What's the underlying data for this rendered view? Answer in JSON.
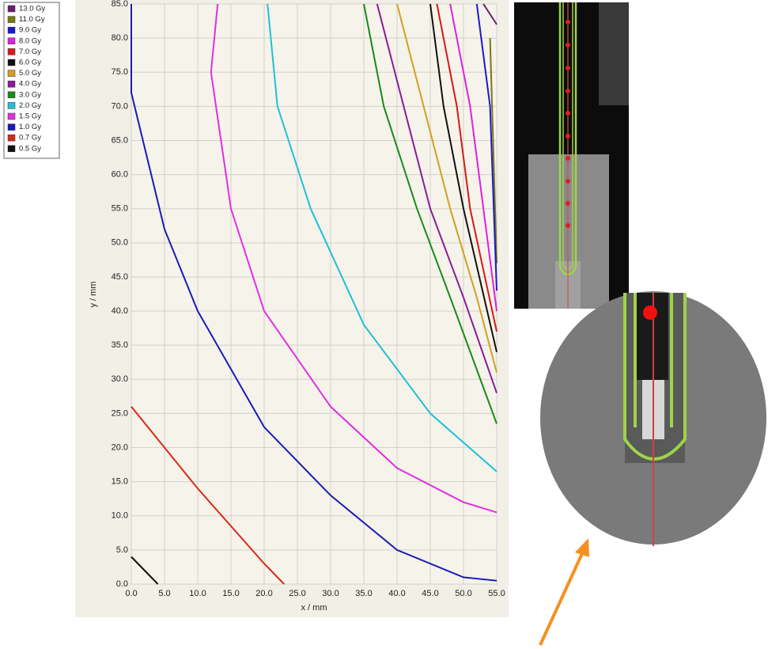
{
  "chart_data": {
    "type": "line",
    "xlabel": "x / mm",
    "ylabel": "y / mm",
    "xlim": [
      0,
      55
    ],
    "ylim": [
      0,
      85
    ],
    "grid": true,
    "xticks": [
      {
        "value": 0,
        "label": "0.0"
      },
      {
        "value": 5,
        "label": "5.0"
      },
      {
        "value": 10,
        "label": "10.0"
      },
      {
        "value": 15,
        "label": "15.0"
      },
      {
        "value": 20,
        "label": "20.0"
      },
      {
        "value": 25,
        "label": "25.0"
      },
      {
        "value": 30,
        "label": "30.0"
      },
      {
        "value": 35,
        "label": "35.0"
      },
      {
        "value": 40,
        "label": "40.0"
      },
      {
        "value": 45,
        "label": "45.0"
      },
      {
        "value": 50,
        "label": "50.0"
      },
      {
        "value": 55,
        "label": "55.0"
      }
    ],
    "yticks": [
      {
        "value": 0,
        "label": "0.0"
      },
      {
        "value": 5,
        "label": "5.0"
      },
      {
        "value": 10,
        "label": "10.0"
      },
      {
        "value": 15,
        "label": "15.0"
      },
      {
        "value": 20,
        "label": "20.0"
      },
      {
        "value": 25,
        "label": "25.0"
      },
      {
        "value": 30,
        "label": "30.0"
      },
      {
        "value": 35,
        "label": "35.0"
      },
      {
        "value": 40,
        "label": "40.0"
      },
      {
        "value": 45,
        "label": "45.0"
      },
      {
        "value": 50,
        "label": "50.0"
      },
      {
        "value": 55,
        "label": "55.0"
      },
      {
        "value": 60,
        "label": "60.0"
      },
      {
        "value": 65,
        "label": "65.0"
      },
      {
        "value": 70,
        "label": "70.0"
      },
      {
        "value": 75,
        "label": "75.0"
      },
      {
        "value": 80,
        "label": "80.0"
      },
      {
        "value": 85,
        "label": "85.0"
      }
    ],
    "series": [
      {
        "name": "13.0 Gy",
        "color": "#6a1f6e",
        "x": [
          53,
          55
        ],
        "values": [
          85,
          82
        ]
      },
      {
        "name": "11.0 Gy",
        "color": "#7a7a10",
        "x": [
          54,
          55
        ],
        "values": [
          80,
          47
        ]
      },
      {
        "name": "9.0 Gy",
        "color": "#1a1acc",
        "x": [
          52,
          54,
          55
        ],
        "values": [
          85,
          70,
          43
        ]
      },
      {
        "name": "8.0 Gy",
        "color": "#e020e0",
        "x": [
          48,
          51,
          53,
          55
        ],
        "values": [
          85,
          70,
          55,
          40
        ]
      },
      {
        "name": "7.0 Gy",
        "color": "#d41a1a",
        "x": [
          46,
          49,
          51,
          55
        ],
        "values": [
          85,
          70,
          55,
          37
        ]
      },
      {
        "name": "6.0 Gy",
        "color": "#111111",
        "x": [
          45,
          47,
          50,
          55
        ],
        "values": [
          85,
          70,
          55,
          34
        ]
      },
      {
        "name": "5.0 Gy",
        "color": "#d4a020",
        "x": [
          40,
          44,
          48,
          52,
          55
        ],
        "values": [
          85,
          70,
          55,
          42,
          31
        ]
      },
      {
        "name": "4.0 Gy",
        "color": "#8a1a9a",
        "x": [
          37,
          41,
          45,
          50,
          55
        ],
        "values": [
          85,
          70,
          55,
          42,
          28
        ]
      },
      {
        "name": "3.0 Gy",
        "color": "#1a8a1a",
        "x": [
          35,
          38,
          43,
          48,
          55
        ],
        "values": [
          85,
          70,
          55,
          42,
          23.5
        ]
      },
      {
        "name": "2.0 Gy",
        "color": "#20c0d8",
        "x": [
          20.5,
          22,
          27,
          35,
          45,
          55
        ],
        "values": [
          85,
          70,
          55,
          38,
          25,
          16.5
        ]
      },
      {
        "name": "1.5 Gy",
        "color": "#e030e0",
        "x": [
          13,
          12,
          15,
          20,
          30,
          40,
          50,
          55
        ],
        "values": [
          85,
          75,
          55,
          40,
          26,
          17,
          12,
          10.5
        ]
      },
      {
        "name": "1.0 Gy",
        "color": "#1a1ab8",
        "x": [
          0,
          0,
          5,
          10,
          20,
          30,
          40,
          50,
          55
        ],
        "values": [
          85,
          72,
          52,
          40,
          23,
          13,
          5,
          1,
          0.5
        ]
      },
      {
        "name": "0.7 Gy",
        "color": "#d42a1a",
        "x": [
          0,
          10,
          20,
          23
        ],
        "values": [
          26,
          14,
          3,
          0
        ]
      },
      {
        "name": "0.5 Gy",
        "color": "#111111",
        "x": [
          0,
          4
        ],
        "values": [
          4,
          0
        ]
      }
    ]
  }
}
